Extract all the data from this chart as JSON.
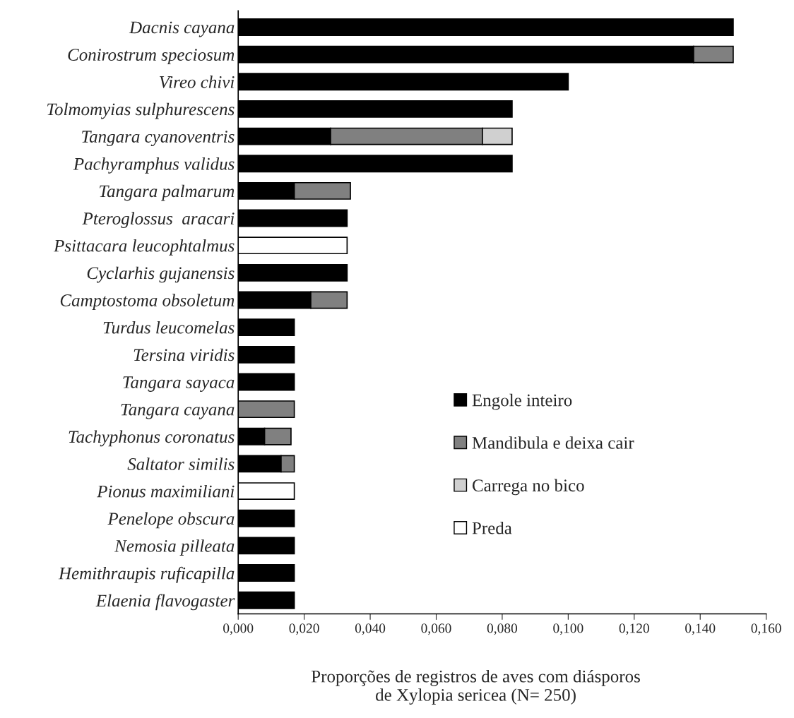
{
  "chart_data": {
    "type": "bar",
    "orientation": "horizontal",
    "stacked": true,
    "xlabel": "Proporções de registros de aves com diásporos\nde Xylopia sericea (N= 250)",
    "categories": [
      "Dacnis cayana",
      "Conirostrum speciosum",
      "Vireo chivi",
      "Tolmomyias sulphurescens",
      "Tangara cyanoventris",
      "Pachyramphus validus",
      "Tangara palmarum",
      "Pteroglossus  aracari",
      "Psittacara leucophtalmus",
      "Cyclarhis gujanensis",
      "Camptostoma obsoletum",
      "Turdus leucomelas",
      "Tersina viridis",
      "Tangara sayaca",
      "Tangara cayana",
      "Tachyphonus coronatus",
      "Saltator similis",
      "Pionus maximiliani",
      "Penelope obscura",
      "Nemosia pilleata",
      "Hemithraupis ruficapilla",
      "Elaenia flavogaster"
    ],
    "series": [
      {
        "name": "Engole inteiro",
        "color": "#000000",
        "values": [
          0.15,
          0.138,
          0.1,
          0.083,
          0.028,
          0.083,
          0.017,
          0.033,
          null,
          0.033,
          0.022,
          0.017,
          0.017,
          0.017,
          null,
          0.008,
          0.013,
          null,
          0.017,
          0.017,
          0.017,
          0.017
        ]
      },
      {
        "name": "Mandibula e deixa cair",
        "color": "#808080",
        "values": [
          null,
          0.012,
          null,
          null,
          0.046,
          null,
          0.017,
          null,
          null,
          null,
          0.011,
          null,
          null,
          null,
          0.017,
          0.008,
          0.004,
          null,
          null,
          null,
          null,
          null
        ]
      },
      {
        "name": "Carrega no bico",
        "color": "#d0d0d0",
        "values": [
          null,
          null,
          null,
          null,
          0.009,
          null,
          null,
          null,
          null,
          null,
          null,
          null,
          null,
          null,
          null,
          null,
          null,
          null,
          null,
          null,
          null,
          null
        ]
      },
      {
        "name": "Preda",
        "color": "#ffffff",
        "values": [
          null,
          null,
          null,
          null,
          null,
          null,
          null,
          null,
          0.033,
          null,
          null,
          null,
          null,
          null,
          null,
          null,
          null,
          0.017,
          null,
          null,
          null,
          null
        ]
      }
    ],
    "xlim": [
      0,
      0.16
    ],
    "xticks": [
      {
        "value": 0,
        "label": "0,000"
      },
      {
        "value": 0.02,
        "label": "0,020"
      },
      {
        "value": 0.04,
        "label": "0,040"
      },
      {
        "value": 0.06,
        "label": "0,060"
      },
      {
        "value": 0.08,
        "label": "0,080"
      },
      {
        "value": 0.1,
        "label": "0,100"
      },
      {
        "value": 0.12,
        "label": "0,120"
      },
      {
        "value": 0.14,
        "label": "0,140"
      },
      {
        "value": 0.16,
        "label": "0,160"
      }
    ],
    "grid": false,
    "legend": "bottom right"
  }
}
